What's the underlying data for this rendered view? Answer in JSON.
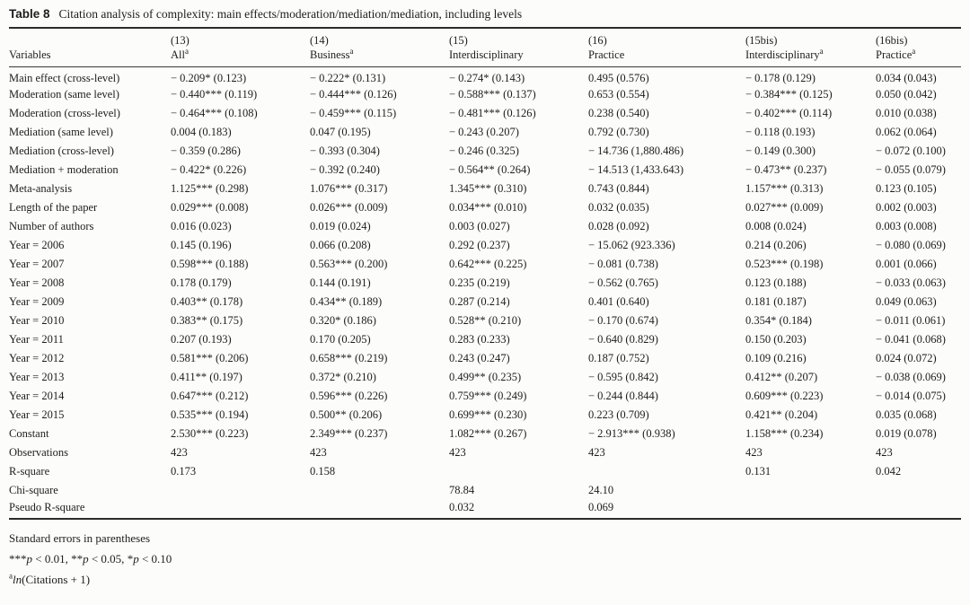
{
  "colors": {
    "ink": "#1d1d1d",
    "rule": "#2b2b2b",
    "background": "#fcfcfb"
  },
  "title": {
    "tag": "Table 8",
    "text": "Citation analysis of complexity: main effects/moderation/mediation/mediation, including levels"
  },
  "header": {
    "variables_label": "Variables",
    "numbers": [
      "(13)",
      "(14)",
      "(15)",
      "(16)",
      "(15bis)",
      "(16bis)"
    ],
    "names": [
      {
        "text": "All",
        "sup": "a"
      },
      {
        "text": "Business",
        "sup": "a"
      },
      {
        "text": "Interdisciplinary",
        "sup": ""
      },
      {
        "text": "Practice",
        "sup": ""
      },
      {
        "text": "Interdisciplinary",
        "sup": "a"
      },
      {
        "text": "Practice",
        "sup": "a"
      }
    ]
  },
  "rows": [
    {
      "label": "Main effect (cross-level)",
      "values": [
        "− 0.209* (0.123)",
        "− 0.222* (0.131)",
        "− 0.274* (0.143)",
        "0.495 (0.576)",
        "− 0.178 (0.129)",
        "0.034 (0.043)"
      ]
    },
    {
      "label": "Moderation (same level)",
      "values": [
        "− 0.440*** (0.119)",
        "− 0.444*** (0.126)",
        "− 0.588*** (0.137)",
        "0.653 (0.554)",
        "− 0.384*** (0.125)",
        "0.050 (0.042)"
      ]
    },
    {
      "label": "Moderation (cross-level)",
      "values": [
        "− 0.464*** (0.108)",
        "− 0.459*** (0.115)",
        "− 0.481*** (0.126)",
        "0.238 (0.540)",
        "− 0.402*** (0.114)",
        "0.010 (0.038)"
      ]
    },
    {
      "label": "Mediation (same level)",
      "values": [
        "0.004 (0.183)",
        "0.047 (0.195)",
        "− 0.243 (0.207)",
        "0.792 (0.730)",
        "− 0.118 (0.193)",
        "0.062 (0.064)"
      ]
    },
    {
      "label": "Mediation (cross-level)",
      "values": [
        "− 0.359 (0.286)",
        "− 0.393 (0.304)",
        "− 0.246 (0.325)",
        "− 14.736 (1,880.486)",
        "− 0.149 (0.300)",
        "− 0.072 (0.100)"
      ]
    },
    {
      "label": "Mediation + moderation",
      "values": [
        "− 0.422* (0.226)",
        "− 0.392 (0.240)",
        "− 0.564** (0.264)",
        "− 14.513 (1,433.643)",
        "− 0.473** (0.237)",
        "− 0.055 (0.079)"
      ]
    },
    {
      "label": "Meta-analysis",
      "values": [
        "1.125*** (0.298)",
        "1.076*** (0.317)",
        "1.345*** (0.310)",
        "0.743 (0.844)",
        "1.157*** (0.313)",
        "0.123 (0.105)"
      ]
    },
    {
      "label": "Length of the paper",
      "values": [
        "0.029*** (0.008)",
        "0.026*** (0.009)",
        "0.034*** (0.010)",
        "0.032 (0.035)",
        "0.027*** (0.009)",
        "0.002 (0.003)"
      ]
    },
    {
      "label": "Number of authors",
      "values": [
        "0.016 (0.023)",
        "0.019 (0.024)",
        "0.003 (0.027)",
        "0.028 (0.092)",
        "0.008 (0.024)",
        "0.003 (0.008)"
      ]
    },
    {
      "label": "Year = 2006",
      "values": [
        "0.145 (0.196)",
        "0.066 (0.208)",
        "0.292 (0.237)",
        "− 15.062 (923.336)",
        "0.214 (0.206)",
        "− 0.080 (0.069)"
      ]
    },
    {
      "label": "Year = 2007",
      "values": [
        "0.598*** (0.188)",
        "0.563*** (0.200)",
        "0.642*** (0.225)",
        "− 0.081 (0.738)",
        "0.523*** (0.198)",
        "0.001 (0.066)"
      ]
    },
    {
      "label": "Year = 2008",
      "values": [
        "0.178 (0.179)",
        "0.144 (0.191)",
        "0.235 (0.219)",
        "− 0.562 (0.765)",
        "0.123 (0.188)",
        "− 0.033 (0.063)"
      ]
    },
    {
      "label": "Year = 2009",
      "values": [
        "0.403** (0.178)",
        "0.434** (0.189)",
        "0.287 (0.214)",
        "0.401 (0.640)",
        "0.181 (0.187)",
        "0.049 (0.063)"
      ]
    },
    {
      "label": "Year = 2010",
      "values": [
        "0.383** (0.175)",
        "0.320* (0.186)",
        "0.528** (0.210)",
        "− 0.170 (0.674)",
        "0.354* (0.184)",
        "− 0.011 (0.061)"
      ]
    },
    {
      "label": "Year = 2011",
      "values": [
        "0.207 (0.193)",
        "0.170 (0.205)",
        "0.283 (0.233)",
        "− 0.640 (0.829)",
        "0.150 (0.203)",
        "− 0.041 (0.068)"
      ]
    },
    {
      "label": "Year = 2012",
      "values": [
        "0.581*** (0.206)",
        "0.658*** (0.219)",
        "0.243 (0.247)",
        "0.187 (0.752)",
        "0.109 (0.216)",
        "0.024 (0.072)"
      ]
    },
    {
      "label": "Year = 2013",
      "values": [
        "0.411** (0.197)",
        "0.372* (0.210)",
        "0.499** (0.235)",
        "− 0.595 (0.842)",
        "0.412** (0.207)",
        "− 0.038 (0.069)"
      ]
    },
    {
      "label": "Year = 2014",
      "values": [
        "0.647*** (0.212)",
        "0.596*** (0.226)",
        "0.759*** (0.249)",
        "− 0.244 (0.844)",
        "0.609*** (0.223)",
        "− 0.014 (0.075)"
      ]
    },
    {
      "label": "Year = 2015",
      "values": [
        "0.535*** (0.194)",
        "0.500** (0.206)",
        "0.699*** (0.230)",
        "0.223 (0.709)",
        "0.421** (0.204)",
        "0.035 (0.068)"
      ]
    },
    {
      "label": "Constant",
      "values": [
        "2.530*** (0.223)",
        "2.349*** (0.237)",
        "1.082*** (0.267)",
        "− 2.913*** (0.938)",
        "1.158*** (0.234)",
        "0.019 (0.078)"
      ]
    },
    {
      "label": "Observations",
      "values": [
        "423",
        "423",
        "423",
        "423",
        "423",
        "423"
      ]
    },
    {
      "label": "R-square",
      "values": [
        "0.173",
        "0.158",
        "",
        "",
        "0.131",
        "0.042"
      ]
    },
    {
      "label": "Chi-square",
      "values": [
        "",
        "",
        "78.84",
        "24.10",
        "",
        ""
      ]
    },
    {
      "label": "Pseudo R-square",
      "values": [
        "",
        "",
        "0.032",
        "0.069",
        "",
        ""
      ]
    }
  ],
  "footnotes": {
    "se": "Standard errors in parentheses",
    "sig": [
      {
        "stars": "***",
        "var": "p",
        "rest": " < 0.01,  "
      },
      {
        "stars": "**",
        "var": "p",
        "rest": " < 0.05,  "
      },
      {
        "stars": "*",
        "var": "p",
        "rest": " < 0.10"
      }
    ],
    "a_note": {
      "sup": "a",
      "fn": "ln",
      "rest": "(Citations + 1)"
    }
  }
}
